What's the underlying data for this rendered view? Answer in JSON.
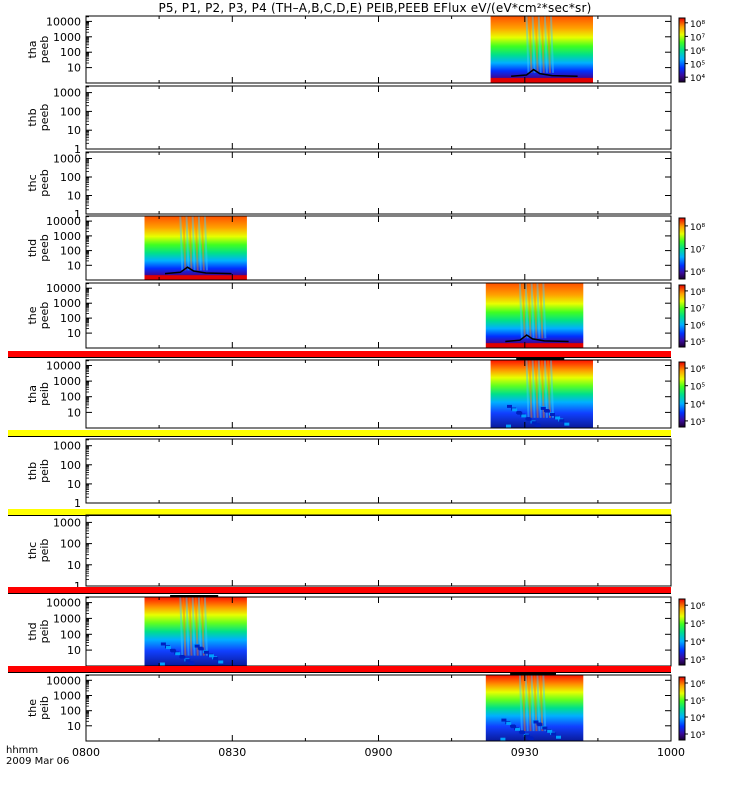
{
  "title": "P5, P1, P2, P3, P4 (TH–A,B,C,D,E) PEIB,PEEB EFlux eV/(eV*cm²*sec*sr)",
  "footer": {
    "label": "hhmm",
    "date": "2009 Mar 06"
  },
  "colors": {
    "red_bar": "#ff0000",
    "yellow_bar": "#ffff00",
    "axis": "#000000"
  },
  "chart_data": {
    "type": "heatmap",
    "title": "P5, P1, P2, P3, P4 (TH–A,B,C,D,E) PEIB,PEEB EFlux eV/(eV*cm²*sec*sr)",
    "x": {
      "unit": "hhmm",
      "range_hhmm": [
        "0800",
        "1000"
      ],
      "ticks": [
        "0800",
        "0830",
        "0900",
        "0930",
        "1000"
      ]
    },
    "y_scale": "log",
    "z_scale": "log",
    "panels": [
      {
        "probe": "tha",
        "product": "peeb",
        "ylabel": [
          "tha",
          "peeb"
        ],
        "ymin": 1,
        "ymax": 10000,
        "yticks": [
          10,
          100,
          1000,
          10000
        ],
        "coverage": [
          {
            "start": "09:23",
            "end": "09:44"
          }
        ],
        "colorbar": [
          4,
          5,
          6,
          7,
          8
        ],
        "bar": null
      },
      {
        "probe": "thb",
        "product": "peeb",
        "ylabel": [
          "thb",
          "peeb"
        ],
        "ymin": 1,
        "ymax": 1000,
        "yticks": [
          1,
          10,
          100,
          1000
        ],
        "coverage": [],
        "colorbar": null,
        "bar": null
      },
      {
        "probe": "thc",
        "product": "peeb",
        "ylabel": [
          "thc",
          "peeb"
        ],
        "ymin": 1,
        "ymax": 1000,
        "yticks": [
          1,
          10,
          100,
          1000
        ],
        "coverage": [],
        "colorbar": null,
        "bar": null
      },
      {
        "probe": "thd",
        "product": "peeb",
        "ylabel": [
          "thd",
          "peeb"
        ],
        "ymin": 1,
        "ymax": 10000,
        "yticks": [
          10,
          100,
          1000,
          10000
        ],
        "coverage": [
          {
            "start": "08:12",
            "end": "08:33"
          }
        ],
        "colorbar": [
          6,
          7,
          8
        ],
        "bar": null
      },
      {
        "probe": "the",
        "product": "peeb",
        "ylabel": [
          "the",
          "peeb"
        ],
        "ymin": 1,
        "ymax": 10000,
        "yticks": [
          10,
          100,
          1000,
          10000
        ],
        "coverage": [
          {
            "start": "09:22",
            "end": "09:42"
          }
        ],
        "colorbar": [
          5,
          6,
          7,
          8
        ],
        "bar": "red"
      },
      {
        "probe": "tha",
        "product": "peib",
        "ylabel": [
          "tha",
          "peib"
        ],
        "ymin": 1,
        "ymax": 10000,
        "yticks": [
          10,
          100,
          1000,
          10000
        ],
        "coverage": [
          {
            "start": "09:23",
            "end": "09:44"
          }
        ],
        "colorbar": [
          3,
          4,
          5,
          6
        ],
        "bar": "yellow"
      },
      {
        "probe": "thb",
        "product": "peib",
        "ylabel": [
          "thb",
          "peib"
        ],
        "ymin": 1,
        "ymax": 1000,
        "yticks": [
          1,
          10,
          100,
          1000
        ],
        "coverage": [],
        "colorbar": null,
        "bar": "yellow"
      },
      {
        "probe": "thc",
        "product": "peib",
        "ylabel": [
          "thc",
          "peib"
        ],
        "ymin": 1,
        "ymax": 1000,
        "yticks": [
          1,
          10,
          100,
          1000
        ],
        "coverage": [],
        "colorbar": null,
        "bar": "red"
      },
      {
        "probe": "thd",
        "product": "peib",
        "ylabel": [
          "thd",
          "peib"
        ],
        "ymin": 1,
        "ymax": 10000,
        "yticks": [
          10,
          100,
          1000,
          10000
        ],
        "coverage": [
          {
            "start": "08:12",
            "end": "08:33"
          }
        ],
        "colorbar": [
          3,
          4,
          5,
          6
        ],
        "bar": "red"
      },
      {
        "probe": "the",
        "product": "peib",
        "ylabel": [
          "the",
          "peib"
        ],
        "ymin": 1,
        "ymax": 10000,
        "yticks": [
          10,
          100,
          1000,
          10000
        ],
        "coverage": [
          {
            "start": "09:22",
            "end": "09:42"
          }
        ],
        "colorbar": [
          3,
          4,
          5,
          6
        ],
        "bar": null
      }
    ]
  }
}
